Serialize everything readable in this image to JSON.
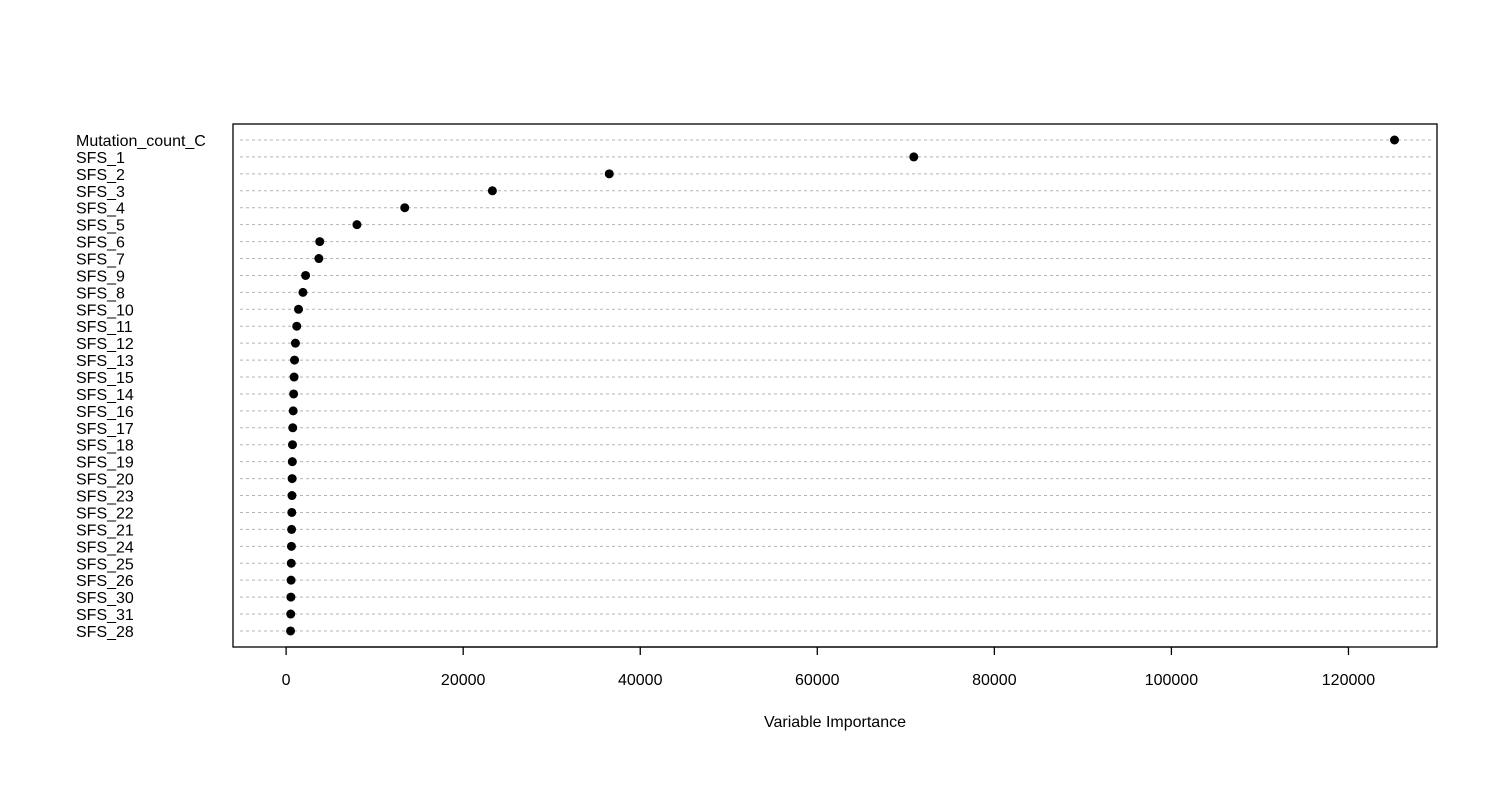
{
  "chart_data": {
    "type": "scatter",
    "title": "",
    "xlabel": "Variable Importance",
    "ylabel": "",
    "xlim": [
      -6000,
      130000
    ],
    "xticks": [
      0,
      20000,
      40000,
      60000,
      80000,
      100000,
      120000
    ],
    "xtick_labels": [
      "0",
      "20000",
      "40000",
      "60000",
      "80000",
      "100000",
      "120000"
    ],
    "grid": "horizontal dashed",
    "point_color": "#000000",
    "grid_color": "#b3b3b3",
    "categories": [
      "Mutation_count_C",
      "SFS_1",
      "SFS_2",
      "SFS_3",
      "SFS_4",
      "SFS_5",
      "SFS_6",
      "SFS_7",
      "SFS_9",
      "SFS_8",
      "SFS_10",
      "SFS_11",
      "SFS_12",
      "SFS_13",
      "SFS_15",
      "SFS_14",
      "SFS_16",
      "SFS_17",
      "SFS_18",
      "SFS_19",
      "SFS_20",
      "SFS_23",
      "SFS_22",
      "SFS_21",
      "SFS_24",
      "SFS_25",
      "SFS_26",
      "SFS_30",
      "SFS_31",
      "SFS_28"
    ],
    "values": [
      125200,
      70900,
      36500,
      23300,
      13400,
      8000,
      3800,
      3700,
      2200,
      1900,
      1400,
      1200,
      1050,
      950,
      900,
      850,
      800,
      750,
      720,
      700,
      680,
      660,
      640,
      620,
      600,
      580,
      560,
      540,
      520,
      500
    ]
  }
}
